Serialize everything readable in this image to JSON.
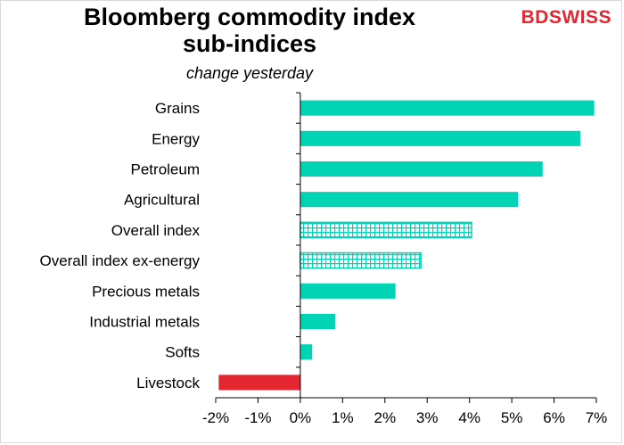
{
  "logo": {
    "text_a": "BD",
    "text_b": "SWISS"
  },
  "chart_data": {
    "type": "bar",
    "orientation": "horizontal",
    "title": "Bloomberg commodity index sub-indices",
    "title_lines": [
      "Bloomberg commodity index",
      "sub-indices"
    ],
    "subtitle": "change yesterday",
    "xlabel": "",
    "ylabel": "",
    "xlim": [
      -2,
      7
    ],
    "x_ticks": [
      "-2%",
      "-1%",
      "0%",
      "1%",
      "2%",
      "3%",
      "4%",
      "5%",
      "6%",
      "7%"
    ],
    "x_tick_values": [
      -2,
      -1,
      0,
      1,
      2,
      3,
      4,
      5,
      6,
      7
    ],
    "grid": false,
    "legend": "none",
    "categories": [
      "Grains",
      "Energy",
      "Petroleum",
      "Agricultural",
      "Overall index",
      "Overall index ex-energy",
      "Precious metals",
      "Industrial metals",
      "Softs",
      "Livestock"
    ],
    "values": [
      6.95,
      6.62,
      5.73,
      5.15,
      4.05,
      2.85,
      2.25,
      0.83,
      0.28,
      -1.93
    ],
    "bar_styles": [
      "solid",
      "solid",
      "solid",
      "solid",
      "hatched",
      "hatched",
      "solid",
      "solid",
      "solid",
      "solid"
    ],
    "colors": {
      "positive": "#00d4b4",
      "negative": "#e3262f",
      "hatch": "#00d4b4"
    }
  }
}
